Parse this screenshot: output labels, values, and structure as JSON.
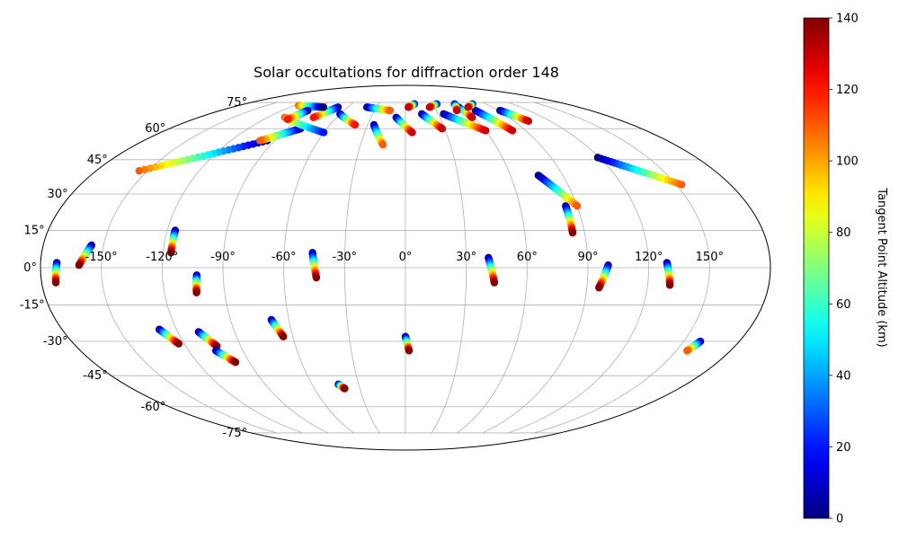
{
  "chart_data": {
    "type": "scatter",
    "title": "Solar occultations for diffraction order 148",
    "projection": "mollweide",
    "lon_ticks": [
      "-150°",
      "-120°",
      "-90°",
      "-60°",
      "-30°",
      "0°",
      "30°",
      "60°",
      "90°",
      "120°",
      "150°"
    ],
    "lon_values": [
      -150,
      -120,
      -90,
      -60,
      -30,
      0,
      30,
      60,
      90,
      120,
      150
    ],
    "lat_ticks": [
      "75°",
      "60°",
      "45°",
      "30°",
      "15°",
      "0°",
      "-15°",
      "-30°",
      "-45°",
      "-60°",
      "-75°"
    ],
    "lat_values": [
      75,
      60,
      45,
      30,
      15,
      0,
      -15,
      -30,
      -45,
      -60,
      -75
    ],
    "grid": true,
    "colorbar": {
      "label": "Tangent Point Altitude (km)",
      "min": 0,
      "max": 140,
      "ticks": [
        "0",
        "20",
        "40",
        "60",
        "80",
        "100",
        "120",
        "140"
      ],
      "tick_values": [
        0,
        20,
        40,
        60,
        80,
        100,
        120,
        140
      ],
      "colormap": "jet"
    },
    "tracks": [
      {
        "lon_start": -172,
        "lat_start": 2,
        "lon_end": -173,
        "lat_end": -6,
        "alt_start": 0,
        "alt_end": 140
      },
      {
        "lon_start": -156,
        "lat_start": 9,
        "lon_end": -161,
        "lat_end": 1,
        "alt_start": 0,
        "alt_end": 140
      },
      {
        "lon_start": -116,
        "lat_start": 15,
        "lon_end": -116,
        "lat_end": 6,
        "alt_start": 0,
        "alt_end": 140
      },
      {
        "lon_start": -103,
        "lat_start": -3,
        "lon_end": -104,
        "lat_end": -10,
        "alt_start": 0,
        "alt_end": 140
      },
      {
        "lon_start": -129,
        "lat_start": -25,
        "lon_end": -123,
        "lat_end": -31,
        "alt_start": 0,
        "alt_end": 140
      },
      {
        "lon_start": -109,
        "lat_start": -26,
        "lon_end": -103,
        "lat_end": -32,
        "alt_start": 0,
        "alt_end": 140
      },
      {
        "lon_start": -105,
        "lat_start": -34,
        "lon_end": -98,
        "lat_end": -39,
        "alt_start": 0,
        "alt_end": 140
      },
      {
        "lon_start": -69,
        "lat_start": -21,
        "lon_end": -65,
        "lat_end": -28,
        "alt_start": 0,
        "alt_end": 140
      },
      {
        "lon_start": -46,
        "lat_start": 6,
        "lon_end": -44,
        "lat_end": -4,
        "alt_start": 0,
        "alt_end": 140
      },
      {
        "lon_start": -43,
        "lat_start": -49,
        "lon_end": -40,
        "lat_end": -51,
        "alt_start": 0,
        "alt_end": 140
      },
      {
        "lon_start": 0,
        "lat_start": -28,
        "lon_end": 2,
        "lat_end": -34,
        "alt_start": 0,
        "alt_end": 140
      },
      {
        "lon_start": 41,
        "lat_start": 4,
        "lon_end": 44,
        "lat_end": -6,
        "alt_start": 0,
        "alt_end": 140
      },
      {
        "lon_start": 100,
        "lat_start": 1,
        "lon_end": 96,
        "lat_end": -8,
        "alt_start": 0,
        "alt_end": 140
      },
      {
        "lon_start": 129,
        "lat_start": 2,
        "lon_end": 131,
        "lat_end": -7,
        "alt_start": 0,
        "alt_end": 140
      },
      {
        "lon_start": 84,
        "lat_start": 25,
        "lon_end": 84,
        "lat_end": 14,
        "alt_start": 0,
        "alt_end": 140
      },
      {
        "lon_start": 76,
        "lat_start": 38,
        "lon_end": 90,
        "lat_end": 25,
        "alt_start": 0,
        "alt_end": 110
      },
      {
        "lon_start": 119,
        "lat_start": 46,
        "lon_end": 153,
        "lat_end": 34,
        "alt_start": 0,
        "alt_end": 110
      },
      {
        "lon_start": 159,
        "lat_start": -30,
        "lon_end": 156,
        "lat_end": -34,
        "alt_start": 0,
        "alt_end": 110
      },
      {
        "lon_start": -95,
        "lat_start": 54,
        "lon_end": -155,
        "lat_end": 40,
        "alt_start": 0,
        "alt_end": 110
      },
      {
        "lon_start": -80,
        "lat_start": 60,
        "lon_end": -100,
        "lat_end": 54,
        "alt_start": 0,
        "alt_end": 110
      },
      {
        "lon_start": -25,
        "lat_start": 62,
        "lon_end": -15,
        "lat_end": 52,
        "alt_start": 0,
        "alt_end": 110
      },
      {
        "lon_start": -8,
        "lat_start": 66,
        "lon_end": 5,
        "lat_end": 58,
        "alt_start": 0,
        "alt_end": 130
      },
      {
        "lon_start": 15,
        "lat_start": 68,
        "lon_end": 28,
        "lat_end": 60,
        "alt_start": 0,
        "alt_end": 130
      },
      {
        "lon_start": 35,
        "lat_start": 68,
        "lon_end": 60,
        "lat_end": 59,
        "alt_start": 0,
        "alt_end": 130
      },
      {
        "lon_start": 68,
        "lat_start": 70,
        "lon_end": 80,
        "lat_end": 59,
        "alt_start": 0,
        "alt_end": 130
      },
      {
        "lon_start": 55,
        "lat_start": 72,
        "lon_end": 58,
        "lat_end": 66,
        "alt_start": 0,
        "alt_end": 130
      },
      {
        "lon_start": 92,
        "lat_start": 70,
        "lon_end": 102,
        "lat_end": 64,
        "alt_start": 0,
        "alt_end": 130
      },
      {
        "lon_start": -105,
        "lat_start": 66,
        "lon_end": -60,
        "lat_end": 58,
        "alt_start": 110,
        "alt_end": 20
      },
      {
        "lon_start": -60,
        "lat_start": 68,
        "lon_end": -40,
        "lat_end": 62,
        "alt_start": 0,
        "alt_end": 120
      },
      {
        "lon_start": -40,
        "lat_start": 72,
        "lon_end": -15,
        "lat_end": 70,
        "alt_start": 0,
        "alt_end": 110
      },
      {
        "lon_start": -70,
        "lat_start": 72,
        "lon_end": -80,
        "lat_end": 66,
        "alt_start": 0,
        "alt_end": 120
      },
      {
        "lon_start": 10,
        "lat_start": 74,
        "lon_end": 3,
        "lat_end": 72,
        "alt_start": 0,
        "alt_end": 130
      },
      {
        "lon_start": 35,
        "lat_start": 74,
        "lon_end": 25,
        "lat_end": 72,
        "alt_start": 0,
        "alt_end": 130
      },
      {
        "lon_start": 55,
        "lat_start": 74,
        "lon_end": 50,
        "lat_end": 70,
        "alt_start": 0,
        "alt_end": 130
      },
      {
        "lon_start": 75,
        "lat_start": 74,
        "lon_end": 65,
        "lat_end": 72,
        "alt_start": 0,
        "alt_end": 130
      },
      {
        "lon_start": -115,
        "lat_start": 73,
        "lon_end": -85,
        "lat_end": 72,
        "alt_start": 110,
        "alt_end": 0
      },
      {
        "lon_start": -95,
        "lat_start": 70,
        "lon_end": -100,
        "lat_end": 65,
        "alt_start": 0,
        "alt_end": 120
      }
    ]
  }
}
